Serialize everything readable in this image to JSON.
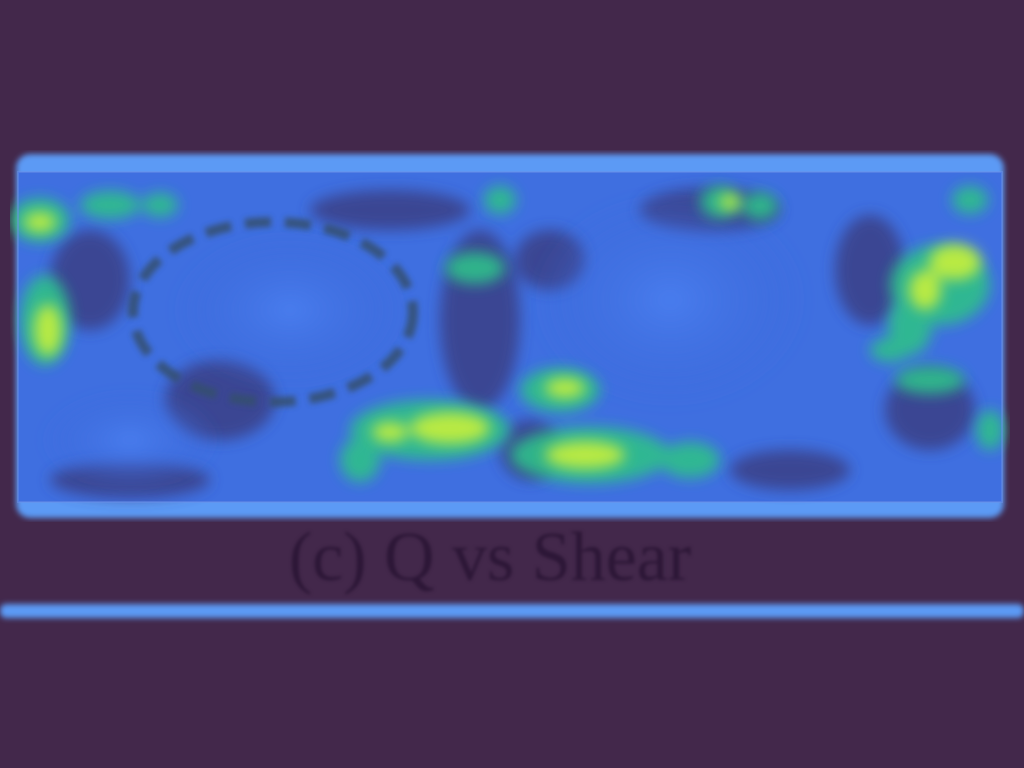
{
  "figure": {
    "caption": "(c) Q vs Shear",
    "colors": {
      "background": "#43284b",
      "field_base": "#3f6fe0",
      "field_edge": "#5b9af5",
      "low_value": "#3a3f86",
      "mid_value": "#2fbf8a",
      "high_value": "#c8f03a",
      "highlight_ellipse": "#35506e"
    },
    "panel": {
      "highlight": "dashed-ellipse"
    }
  }
}
